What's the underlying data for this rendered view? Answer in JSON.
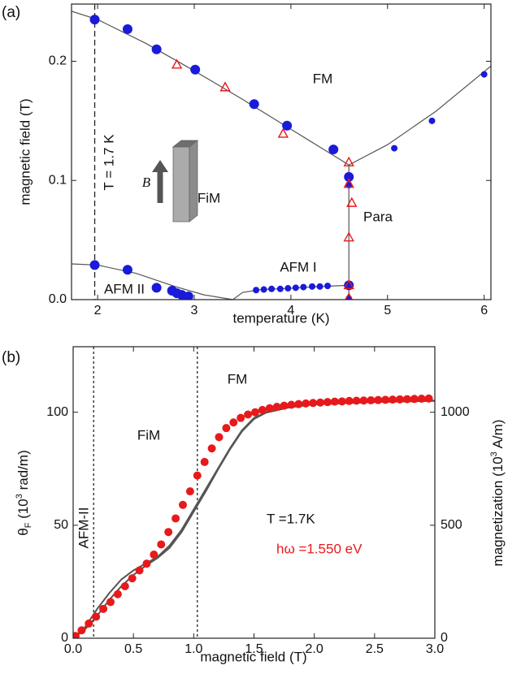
{
  "chart_data": [
    {
      "type": "scatter",
      "panel_label": "(a)",
      "xlabel": "temperature (K)",
      "ylabel": "magnetic field (T)",
      "xlim": [
        1.73,
        6.07
      ],
      "ylim": [
        0,
        0.248
      ],
      "xticks": [
        2,
        3,
        4,
        5,
        6
      ],
      "yticks": [
        {
          "value": 0,
          "label": "0.0"
        },
        0.1,
        0.2
      ],
      "series": [
        {
          "marker": "circle",
          "color": "#1a1adb",
          "x": [
            1.97,
            2.31,
            2.61,
            3.01,
            3.62,
            3.96,
            4.44,
            4.6,
            1.97,
            2.31,
            2.61,
            2.77,
            2.82,
            2.87,
            2.94,
            4.6
          ],
          "values": [
            0.235,
            0.227,
            0.21,
            0.193,
            0.164,
            0.146,
            0.126,
            0.103,
            0.029,
            0.025,
            0.01,
            0.0075,
            0.0054,
            0.004,
            0.0027,
            0.012
          ]
        },
        {
          "marker": "circle",
          "color": "#1a1adb",
          "x": [
            3.64,
            3.72,
            3.8,
            3.89,
            3.97,
            4.05,
            4.13,
            4.22,
            4.3,
            4.38,
            4.6,
            4.6,
            5.07,
            5.46,
            6.0
          ],
          "values": [
            0.008,
            0.0085,
            0.009,
            0.009,
            0.0095,
            0.01,
            0.0105,
            0.011,
            0.011,
            0.0115,
            0.096,
            0.001,
            0.127,
            0.15,
            0.189
          ]
        },
        {
          "marker": "triangle",
          "color": "#e8191b",
          "x": [
            2.82,
            3.32,
            3.92,
            4.6,
            4.6,
            4.63,
            4.6,
            4.6,
            4.6
          ],
          "values": [
            0.197,
            0.178,
            0.139,
            0.115,
            0.097,
            0.081,
            0.052,
            0.012,
            0.001
          ]
        }
      ],
      "lines": [
        {
          "color": "#555555",
          "x": [
            1.73,
            2.0,
            2.5,
            3.0,
            3.5,
            4.0,
            4.3,
            4.6
          ],
          "values": [
            0.242,
            0.235,
            0.215,
            0.192,
            0.168,
            0.143,
            0.128,
            0.113
          ]
        },
        {
          "color": "#555555",
          "x": [
            4.6,
            5.0,
            5.5,
            6.07
          ],
          "values": [
            0.113,
            0.13,
            0.158,
            0.196
          ]
        },
        {
          "color": "#555555",
          "x": [
            4.6,
            4.6
          ],
          "values": [
            0.113,
            0
          ]
        },
        {
          "color": "#555555",
          "x": [
            1.73,
            2.0,
            2.4,
            2.8,
            3.1,
            3.4,
            3.5,
            3.7,
            4.0,
            4.3,
            4.6
          ],
          "values": [
            0.03,
            0.029,
            0.022,
            0.011,
            0.004,
            0,
            0.006,
            0.0085,
            0.0095,
            0.011,
            0.012
          ]
        }
      ],
      "vlines": [
        1.97
      ],
      "annotations": [
        {
          "text": "FM"
        },
        {
          "text": "FiM"
        },
        {
          "text": "Para"
        },
        {
          "text": "AFM I"
        },
        {
          "text": "AFM II"
        },
        {
          "text": "T = 1.7 K"
        },
        {
          "text": "B"
        }
      ]
    },
    {
      "type": "scatter",
      "panel_label": "(b)",
      "xlabel": "magnetic field (T)",
      "ylabel": [
        "θ",
        "F",
        " (10",
        "3",
        " rad/m)"
      ],
      "y2label": [
        "magnetization (10",
        "3",
        " A/m)"
      ],
      "xlim": [
        0,
        3.0
      ],
      "ylim": [
        0,
        129
      ],
      "y2lim": [
        0,
        1290
      ],
      "xticks": [
        {
          "value": 0,
          "label": "0.0"
        },
        0.5,
        {
          "value": 1,
          "label": "1.0"
        },
        1.5,
        {
          "value": 2,
          "label": "2.0"
        },
        2.5,
        {
          "value": 3,
          "label": "3.0"
        }
      ],
      "yticks": [
        0,
        50,
        100
      ],
      "y2ticks": [
        0,
        500,
        1000
      ],
      "series": [
        {
          "marker": "circle",
          "color": "#e8191b",
          "x": [
            0.02,
            0.07,
            0.13,
            0.19,
            0.25,
            0.31,
            0.37,
            0.43,
            0.49,
            0.55,
            0.61,
            0.67,
            0.73,
            0.79,
            0.85,
            0.91,
            0.97,
            1.03,
            1.09,
            1.15,
            1.21,
            1.27,
            1.33,
            1.39,
            1.45,
            1.51,
            1.57,
            1.63,
            1.69,
            1.75,
            1.81,
            1.87,
            1.93,
            1.99,
            2.05,
            2.11,
            2.17,
            2.23,
            2.29,
            2.35,
            2.41,
            2.47,
            2.53,
            2.59,
            2.65,
            2.71,
            2.77,
            2.83,
            2.89,
            2.95
          ],
          "values": [
            1,
            3.5,
            6.5,
            9.5,
            13,
            16,
            19.5,
            23,
            26.5,
            30,
            33,
            37,
            41.5,
            47,
            53,
            59,
            65,
            72,
            78,
            84,
            89,
            93,
            95.5,
            97.5,
            99,
            100,
            101,
            101.8,
            102.4,
            102.9,
            103.3,
            103.6,
            103.9,
            104.1,
            104.3,
            104.5,
            104.7,
            104.8,
            105,
            105.1,
            105.2,
            105.3,
            105.4,
            105.5,
            105.6,
            105.7,
            105.8,
            105.9,
            106,
            106.1
          ]
        }
      ],
      "lines": [
        {
          "axis": "y2",
          "color": "#555555",
          "x": [
            0,
            0.1,
            0.2,
            0.3,
            0.4,
            0.5,
            0.6,
            0.7,
            0.8,
            0.9,
            1.0,
            1.1,
            1.2,
            1.3,
            1.4,
            1.5,
            1.6,
            1.8,
            2.0,
            2.5,
            3.0
          ],
          "values": [
            0,
            50,
            130,
            200,
            260,
            300,
            330,
            360,
            410,
            480,
            570,
            660,
            750,
            840,
            920,
            975,
            1000,
            1025,
            1035,
            1045,
            1050
          ]
        },
        {
          "axis": "y2",
          "color": "#555555",
          "x": [
            0,
            0.1,
            0.2,
            0.3,
            0.4,
            0.5,
            0.6,
            0.7,
            0.8,
            0.9,
            1.0,
            1.1,
            1.2,
            1.3,
            1.4,
            1.5,
            1.6,
            1.8,
            2.0,
            2.5,
            3.0
          ],
          "values": [
            0,
            40,
            100,
            170,
            230,
            280,
            320,
            355,
            400,
            470,
            560,
            650,
            745,
            835,
            915,
            970,
            998,
            1022,
            1035,
            1045,
            1052
          ]
        }
      ],
      "vlines": [
        0.17,
        1.03
      ],
      "annotations": [
        {
          "text": "FM"
        },
        {
          "text": "FiM"
        },
        {
          "text": "AFM-II"
        },
        {
          "text": "T =1.7K"
        },
        {
          "text": "hω =1.550 eV",
          "color": "#e8191b"
        }
      ]
    }
  ]
}
